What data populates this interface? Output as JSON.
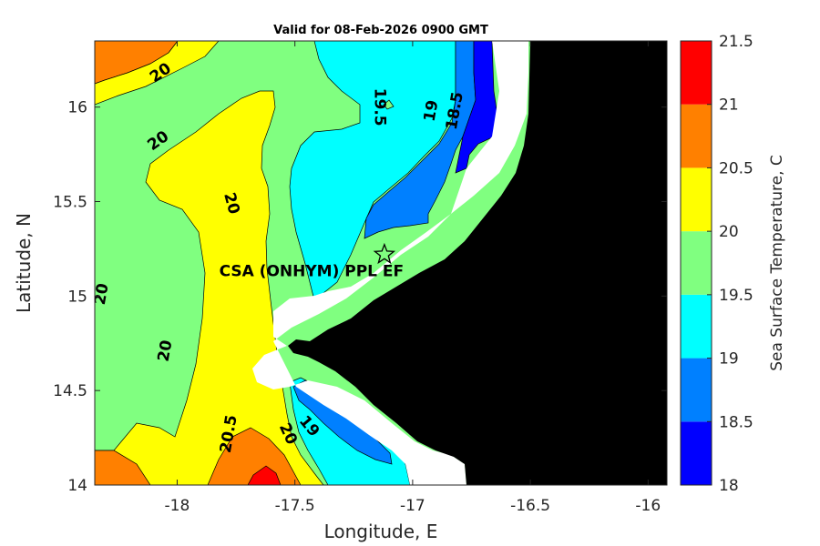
{
  "title": "Valid for 08-Feb-2026 0900 GMT",
  "map": {
    "xlabel": "Longitude, E",
    "ylabel": "Latitude, N",
    "x_range": [
      -18.35,
      -15.92
    ],
    "y_range": [
      14.0,
      16.35
    ],
    "x_ticks": [
      {
        "value": -18,
        "label": "-18"
      },
      {
        "value": -17.5,
        "label": "-17.5"
      },
      {
        "value": -17,
        "label": "-17"
      },
      {
        "value": -16.5,
        "label": "-16.5"
      },
      {
        "value": -16,
        "label": "-16"
      }
    ],
    "y_ticks": [
      {
        "value": 14,
        "label": "14"
      },
      {
        "value": 14.5,
        "label": "14.5"
      },
      {
        "value": 15,
        "label": "15"
      },
      {
        "value": 15.5,
        "label": "15.5"
      },
      {
        "value": 16,
        "label": "16"
      }
    ],
    "site": {
      "name": "CSA (ONHYM) PPL EF",
      "lon": -17.12,
      "lat": 15.22
    }
  },
  "colorbar": {
    "label": "Sea Surface Temperature, C",
    "ticks": [
      "18",
      "18.5",
      "19",
      "19.5",
      "20",
      "20.5",
      "21",
      "21.5"
    ],
    "levels": [
      {
        "min": 18.0,
        "max": 18.5,
        "color": "#0000ff"
      },
      {
        "min": 18.5,
        "max": 19.0,
        "color": "#0080ff"
      },
      {
        "min": 19.0,
        "max": 19.5,
        "color": "#00ffff"
      },
      {
        "min": 19.5,
        "max": 20.0,
        "color": "#80ff80"
      },
      {
        "min": 20.0,
        "max": 20.5,
        "color": "#ffff00"
      },
      {
        "min": 20.5,
        "max": 21.0,
        "color": "#ff8000"
      },
      {
        "min": 21.0,
        "max": 21.5,
        "color": "#ff0000"
      }
    ]
  },
  "contour_labels": [
    {
      "text": "20",
      "lon": -18.07,
      "lat": 16.18,
      "angle": -35
    },
    {
      "text": "20",
      "lon": -18.08,
      "lat": 15.82,
      "angle": -35
    },
    {
      "text": "20",
      "lon": -17.77,
      "lat": 15.49,
      "angle": 75
    },
    {
      "text": "20",
      "lon": -18.32,
      "lat": 15.01,
      "angle": -80
    },
    {
      "text": "20",
      "lon": -18.05,
      "lat": 14.71,
      "angle": -80
    },
    {
      "text": "20.5",
      "lon": -17.78,
      "lat": 14.27,
      "angle": -80
    },
    {
      "text": "20",
      "lon": -17.53,
      "lat": 14.27,
      "angle": 65
    },
    {
      "text": "19",
      "lon": -17.44,
      "lat": 14.31,
      "angle": 50
    },
    {
      "text": "19.5",
      "lon": -17.14,
      "lat": 16.0,
      "angle": 90
    },
    {
      "text": "19",
      "lon": -16.92,
      "lat": 15.98,
      "angle": -80
    },
    {
      "text": "18.5",
      "lon": -16.82,
      "lat": 15.98,
      "angle": -80
    }
  ]
}
